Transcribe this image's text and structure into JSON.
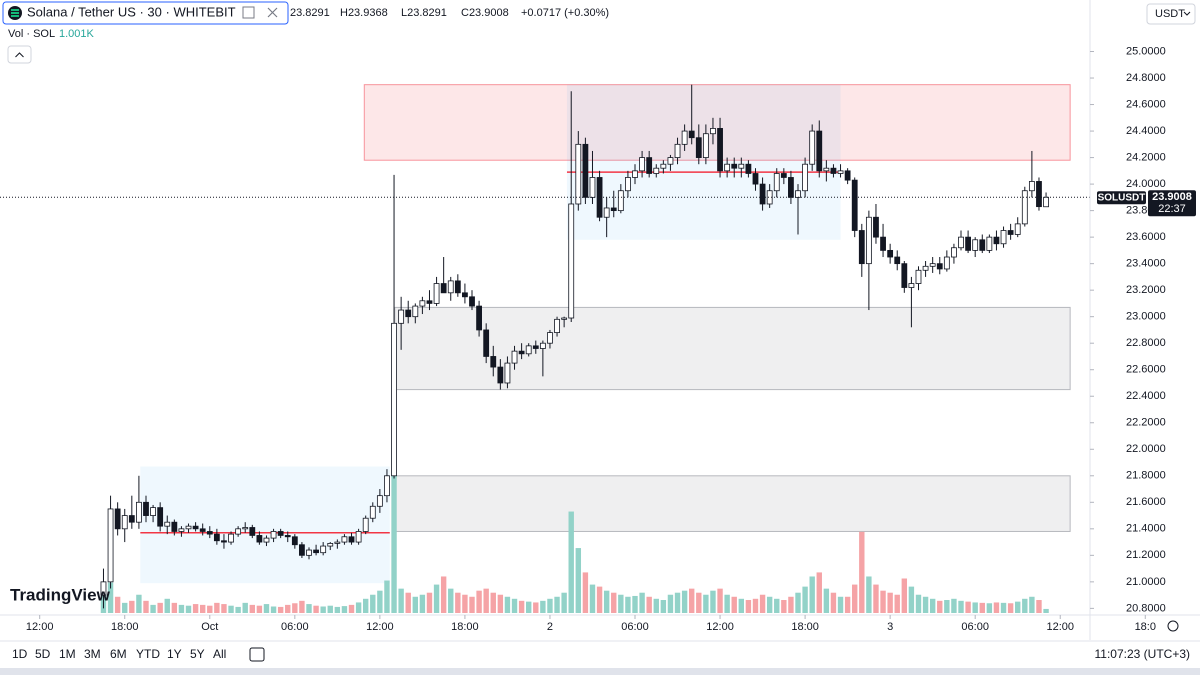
{
  "header": {
    "symbol": "Solana / Tether US · 30 · WHITEBIT",
    "legend_values": [
      "23.8291",
      "H23.9368",
      "L23.8291",
      "C23.9008",
      "+0.0717 (+0.30%)"
    ]
  },
  "chart_data": {
    "type": "candlestick",
    "x": [
      16.5,
      17,
      17.5,
      18,
      18.5,
      19,
      19.5,
      20,
      20.5,
      21,
      21.5,
      22,
      22.5,
      23,
      23.5,
      24,
      24.5,
      25,
      25.5,
      26,
      26.5,
      27,
      27.5,
      28,
      28.5,
      29,
      29.5,
      30,
      30.5,
      31,
      31.5,
      32,
      32.5,
      33,
      33.5,
      34,
      34.5,
      35,
      35.5,
      36,
      36.5,
      37,
      37.5,
      38,
      38.5,
      39,
      39.5,
      40,
      40.5,
      41,
      41.5,
      42,
      42.5,
      43,
      43.5,
      44,
      44.5,
      45,
      45.5,
      46,
      46.5,
      47,
      47.5,
      48,
      48.5,
      49,
      49.5,
      50,
      50.5,
      51,
      51.5,
      52,
      52.5,
      53,
      53.5,
      54,
      54.5,
      55,
      55.5,
      56,
      56.5,
      57,
      57.5,
      58,
      58.5,
      59,
      59.5,
      60,
      60.5,
      61,
      61.5,
      62,
      62.5,
      63,
      63.5,
      64,
      64.5,
      65,
      65.5,
      66,
      66.5,
      67,
      67.5,
      68,
      68.5,
      69,
      69.5,
      70,
      70.5,
      71,
      71.5,
      72,
      72.5,
      73,
      73.5,
      74,
      74.5,
      75,
      75.5,
      76,
      76.5,
      77,
      77.5,
      78,
      78.5,
      79,
      79.5,
      80,
      80.5,
      81,
      81.5,
      82,
      82.5,
      83
    ],
    "ohlc": [
      [
        20.9,
        21.1,
        20.8,
        21.0
      ],
      [
        21.0,
        21.65,
        20.95,
        21.55
      ],
      [
        21.55,
        21.6,
        21.35,
        21.4
      ],
      [
        21.4,
        21.55,
        21.3,
        21.5
      ],
      [
        21.5,
        21.65,
        21.4,
        21.45
      ],
      [
        21.45,
        21.8,
        21.4,
        21.6
      ],
      [
        21.6,
        21.65,
        21.45,
        21.5
      ],
      [
        21.5,
        21.58,
        21.45,
        21.56
      ],
      [
        21.56,
        21.6,
        21.38,
        21.42
      ],
      [
        21.42,
        21.5,
        21.36,
        21.45
      ],
      [
        21.45,
        21.47,
        21.35,
        21.38
      ],
      [
        21.38,
        21.42,
        21.34,
        21.4
      ],
      [
        21.4,
        21.44,
        21.37,
        21.42
      ],
      [
        21.42,
        21.45,
        21.38,
        21.4
      ],
      [
        21.4,
        21.44,
        21.35,
        21.38
      ],
      [
        21.38,
        21.42,
        21.33,
        21.36
      ],
      [
        21.36,
        21.4,
        21.28,
        21.31
      ],
      [
        21.31,
        21.36,
        21.25,
        21.3
      ],
      [
        21.3,
        21.38,
        21.28,
        21.36
      ],
      [
        21.36,
        21.42,
        21.34,
        21.4
      ],
      [
        21.4,
        21.45,
        21.37,
        21.41
      ],
      [
        21.41,
        21.43,
        21.33,
        21.35
      ],
      [
        21.35,
        21.38,
        21.28,
        21.3
      ],
      [
        21.3,
        21.35,
        21.27,
        21.33
      ],
      [
        21.33,
        21.4,
        21.3,
        21.38
      ],
      [
        21.38,
        21.4,
        21.33,
        21.35
      ],
      [
        21.35,
        21.38,
        21.3,
        21.34
      ],
      [
        21.34,
        21.36,
        21.25,
        21.28
      ],
      [
        21.28,
        21.3,
        21.18,
        21.2
      ],
      [
        21.2,
        21.26,
        21.17,
        21.24
      ],
      [
        21.24,
        21.28,
        21.2,
        21.22
      ],
      [
        21.22,
        21.3,
        21.2,
        21.27
      ],
      [
        21.27,
        21.3,
        21.24,
        21.29
      ],
      [
        21.29,
        21.32,
        21.25,
        21.3
      ],
      [
        21.3,
        21.36,
        21.28,
        21.34
      ],
      [
        21.34,
        21.37,
        21.28,
        21.3
      ],
      [
        21.3,
        21.4,
        21.28,
        21.38
      ],
      [
        21.38,
        21.5,
        21.36,
        21.48
      ],
      [
        21.48,
        21.6,
        21.45,
        21.57
      ],
      [
        21.57,
        21.7,
        21.52,
        21.65
      ],
      [
        21.65,
        21.85,
        21.6,
        21.8
      ],
      [
        21.8,
        24.07,
        21.78,
        22.95
      ],
      [
        22.95,
        23.15,
        22.75,
        23.05
      ],
      [
        23.05,
        23.12,
        22.95,
        23.0
      ],
      [
        23.0,
        23.1,
        22.95,
        23.08
      ],
      [
        23.08,
        23.15,
        23.02,
        23.12
      ],
      [
        23.12,
        23.2,
        23.05,
        23.1
      ],
      [
        23.1,
        23.3,
        23.08,
        23.25
      ],
      [
        23.25,
        23.45,
        23.2,
        23.18
      ],
      [
        23.18,
        23.3,
        23.12,
        23.27
      ],
      [
        23.27,
        23.32,
        23.15,
        23.18
      ],
      [
        23.18,
        23.25,
        23.1,
        23.15
      ],
      [
        23.15,
        23.2,
        23.05,
        23.08
      ],
      [
        23.08,
        23.12,
        22.85,
        22.9
      ],
      [
        22.9,
        22.95,
        22.65,
        22.7
      ],
      [
        22.7,
        22.78,
        22.55,
        22.62
      ],
      [
        22.62,
        22.68,
        22.45,
        22.5
      ],
      [
        22.5,
        22.7,
        22.46,
        22.65
      ],
      [
        22.65,
        22.78,
        22.6,
        22.74
      ],
      [
        22.74,
        22.8,
        22.68,
        22.72
      ],
      [
        22.72,
        22.8,
        22.7,
        22.78
      ],
      [
        22.78,
        22.82,
        22.72,
        22.76
      ],
      [
        22.76,
        22.82,
        22.55,
        22.8
      ],
      [
        22.8,
        22.9,
        22.76,
        22.88
      ],
      [
        22.88,
        23.0,
        22.85,
        22.98
      ],
      [
        22.98,
        23.0,
        22.92,
        22.99
      ],
      [
        22.99,
        24.7,
        22.96,
        23.85
      ],
      [
        23.85,
        24.4,
        23.8,
        24.3
      ],
      [
        24.3,
        24.35,
        23.85,
        23.9
      ],
      [
        23.9,
        24.25,
        23.85,
        24.05
      ],
      [
        24.05,
        24.1,
        23.72,
        23.75
      ],
      [
        23.75,
        23.9,
        23.6,
        23.82
      ],
      [
        23.82,
        23.95,
        23.75,
        23.8
      ],
      [
        23.8,
        24.0,
        23.78,
        23.95
      ],
      [
        23.95,
        24.1,
        23.9,
        24.05
      ],
      [
        24.05,
        24.15,
        24.0,
        24.1
      ],
      [
        24.1,
        24.25,
        24.05,
        24.2
      ],
      [
        24.2,
        24.25,
        24.05,
        24.08
      ],
      [
        24.08,
        24.15,
        24.05,
        24.12
      ],
      [
        24.12,
        24.18,
        24.08,
        24.15
      ],
      [
        24.15,
        24.22,
        24.1,
        24.2
      ],
      [
        24.2,
        24.35,
        24.15,
        24.3
      ],
      [
        24.3,
        24.45,
        24.25,
        24.4
      ],
      [
        24.4,
        24.75,
        24.3,
        24.35
      ],
      [
        24.35,
        24.45,
        24.15,
        24.2
      ],
      [
        24.2,
        24.45,
        24.15,
        24.38
      ],
      [
        24.38,
        24.5,
        24.3,
        24.42
      ],
      [
        24.42,
        24.5,
        24.05,
        24.1
      ],
      [
        24.1,
        24.2,
        24.05,
        24.15
      ],
      [
        24.15,
        24.2,
        24.05,
        24.12
      ],
      [
        24.12,
        24.2,
        24.05,
        24.15
      ],
      [
        24.15,
        24.18,
        24.05,
        24.08
      ],
      [
        24.08,
        24.12,
        23.95,
        24.0
      ],
      [
        24.0,
        24.05,
        23.8,
        23.85
      ],
      [
        23.85,
        24.0,
        23.82,
        23.95
      ],
      [
        23.95,
        24.12,
        23.9,
        24.08
      ],
      [
        24.08,
        24.12,
        24.0,
        24.05
      ],
      [
        24.05,
        24.1,
        23.85,
        23.9
      ],
      [
        23.9,
        24.0,
        23.62,
        23.95
      ],
      [
        23.95,
        24.2,
        23.9,
        24.15
      ],
      [
        24.15,
        24.45,
        24.1,
        24.4
      ],
      [
        24.4,
        24.48,
        24.05,
        24.1
      ],
      [
        24.1,
        24.18,
        24.02,
        24.12
      ],
      [
        24.12,
        24.15,
        24.05,
        24.08
      ],
      [
        24.08,
        24.15,
        24.05,
        24.1
      ],
      [
        24.1,
        24.12,
        24.0,
        24.03
      ],
      [
        24.03,
        24.05,
        23.6,
        23.65
      ],
      [
        23.65,
        23.7,
        23.3,
        23.4
      ],
      [
        23.4,
        23.8,
        23.05,
        23.75
      ],
      [
        23.75,
        23.85,
        23.55,
        23.6
      ],
      [
        23.6,
        23.7,
        23.45,
        23.5
      ],
      [
        23.5,
        23.55,
        23.4,
        23.45
      ],
      [
        23.45,
        23.5,
        23.35,
        23.4
      ],
      [
        23.4,
        23.42,
        23.18,
        23.22
      ],
      [
        23.22,
        23.3,
        22.92,
        23.25
      ],
      [
        23.25,
        23.38,
        23.2,
        23.35
      ],
      [
        23.35,
        23.42,
        23.3,
        23.38
      ],
      [
        23.38,
        23.45,
        23.33,
        23.4
      ],
      [
        23.4,
        23.45,
        23.32,
        23.36
      ],
      [
        23.36,
        23.5,
        23.34,
        23.45
      ],
      [
        23.45,
        23.55,
        23.4,
        23.52
      ],
      [
        23.52,
        23.65,
        23.5,
        23.6
      ],
      [
        23.6,
        23.65,
        23.48,
        23.5
      ],
      [
        23.5,
        23.6,
        23.45,
        23.58
      ],
      [
        23.58,
        23.62,
        23.48,
        23.5
      ],
      [
        23.5,
        23.62,
        23.48,
        23.6
      ],
      [
        23.6,
        23.65,
        23.5,
        23.55
      ],
      [
        23.55,
        23.68,
        23.52,
        23.65
      ],
      [
        23.65,
        23.7,
        23.58,
        23.62
      ],
      [
        23.62,
        23.75,
        23.6,
        23.7
      ],
      [
        23.7,
        23.98,
        23.68,
        23.95
      ],
      [
        23.95,
        24.25,
        23.9,
        24.02
      ],
      [
        24.02,
        24.05,
        23.8,
        23.83
      ],
      [
        23.8291,
        23.9368,
        23.8291,
        23.9008
      ]
    ],
    "volume": {
      "name": "Vol · SOL",
      "last_label": "1.001K",
      "values": [
        5000,
        7500,
        4000,
        2500,
        3000,
        4500,
        3000,
        2000,
        2500,
        3500,
        2500,
        2000,
        1800,
        2200,
        2000,
        1800,
        2500,
        2200,
        1800,
        1500,
        2500,
        2000,
        1800,
        2200,
        1600,
        1500,
        2000,
        2400,
        3000,
        2200,
        1800,
        1600,
        1800,
        1500,
        1700,
        2000,
        2600,
        3500,
        4500,
        5500,
        8000,
        34000,
        6000,
        5000,
        4000,
        4500,
        5000,
        7000,
        9000,
        6000,
        5000,
        4500,
        4000,
        5500,
        6000,
        5000,
        4500,
        4000,
        3500,
        3000,
        2800,
        2600,
        3000,
        3500,
        4000,
        5000,
        25000,
        16000,
        10000,
        7000,
        6500,
        5500,
        5000,
        4500,
        4000,
        4200,
        5000,
        4000,
        3500,
        3200,
        4500,
        5000,
        5500,
        6000,
        5000,
        4500,
        5500,
        6000,
        4500,
        4000,
        3500,
        3200,
        3500,
        4500,
        4000,
        3500,
        3200,
        4000,
        5000,
        6500,
        9000,
        10000,
        6000,
        5000,
        4000,
        4000,
        7000,
        20000,
        9000,
        7000,
        5500,
        5000,
        4500,
        8500,
        6500,
        4500,
        4000,
        3500,
        3000,
        3200,
        3500,
        3000,
        2800,
        2600,
        2500,
        2400,
        2600,
        2500,
        2400,
        2800,
        3500,
        4000,
        3200,
        1001
      ]
    },
    "up_color": "#ffffff",
    "down_color": "#131722",
    "volume_up_color": "#92d2c8",
    "volume_down_color": "#f5a3a6",
    "xlim": [
      9.2,
      86.1
    ],
    "ylim": [
      20.75,
      25.2
    ],
    "xticks": [
      {
        "value": 12,
        "label": "12:00"
      },
      {
        "value": 18,
        "label": "18:00"
      },
      {
        "value": 24,
        "label": "Oct"
      },
      {
        "value": 30,
        "label": "06:00"
      },
      {
        "value": 36,
        "label": "12:00"
      },
      {
        "value": 42,
        "label": "18:00"
      },
      {
        "value": 48,
        "label": "2"
      },
      {
        "value": 54,
        "label": "06:00"
      },
      {
        "value": 60,
        "label": "12:00"
      },
      {
        "value": 66,
        "label": "18:00"
      },
      {
        "value": 72,
        "label": "3"
      },
      {
        "value": 78,
        "label": "06:00"
      },
      {
        "value": 84,
        "label": "12:00"
      },
      {
        "value": 90,
        "label": "18:0"
      }
    ],
    "yticks": [
      {
        "value": 20.8,
        "label": "20.8000"
      },
      {
        "value": 21,
        "label": "21.0000"
      },
      {
        "value": 21.2,
        "label": "21.2000"
      },
      {
        "value": 21.4,
        "label": "21.4000"
      },
      {
        "value": 21.6,
        "label": "21.6000"
      },
      {
        "value": 21.8,
        "label": "21.8000"
      },
      {
        "value": 22,
        "label": "22.0000"
      },
      {
        "value": 22.2,
        "label": "22.2000"
      },
      {
        "value": 22.4,
        "label": "22.4000"
      },
      {
        "value": 22.6,
        "label": "22.6000"
      },
      {
        "value": 22.8,
        "label": "22.8000"
      },
      {
        "value": 23,
        "label": "23.0000"
      },
      {
        "value": 23.2,
        "label": "23.2000"
      },
      {
        "value": 23.4,
        "label": "23.4000"
      },
      {
        "value": 23.6,
        "label": "23.6000"
      },
      {
        "value": 23.8,
        "label": "23.8000"
      },
      {
        "value": 24,
        "label": "24.0000"
      },
      {
        "value": 24.2,
        "label": "24.2000"
      },
      {
        "value": 24.4,
        "label": "24.4000"
      },
      {
        "value": 24.6,
        "label": "24.6000"
      },
      {
        "value": 24.8,
        "label": "24.8000"
      },
      {
        "value": 25,
        "label": "25.0000"
      }
    ],
    "grid": false,
    "zones": [
      {
        "low": 24.18,
        "high": 24.75,
        "start": 34.9,
        "end": 84.7,
        "color": "#f23645"
      },
      {
        "low": 22.45,
        "high": 23.07,
        "start": 37.05,
        "end": 84.7,
        "color": "#787b86"
      },
      {
        "low": 21.38,
        "high": 21.8,
        "start": 37.05,
        "end": 84.7,
        "color": "#787b86"
      }
    ],
    "volume_profiles": [
      {
        "start": 19.1,
        "end": 36.7,
        "low": 20.99,
        "high": 21.87,
        "poc": 21.37
      },
      {
        "start": 49.2,
        "end": 68.5,
        "low": 23.58,
        "high": 24.75,
        "poc": 24.09
      }
    ],
    "symbol_label": "SOLUSDT",
    "countdown": "22:37",
    "currency": "USDT",
    "branding": "TradingView"
  },
  "toolbar": {
    "ranges": [
      "1D",
      "5D",
      "1M",
      "3M",
      "6M",
      "YTD",
      "1Y",
      "5Y",
      "All"
    ],
    "clock": "11:07:23 (UTC+3)"
  }
}
